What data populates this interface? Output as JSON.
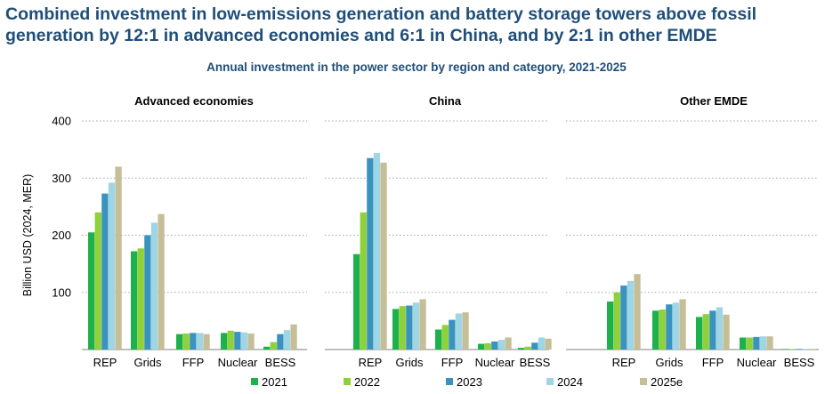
{
  "headline": "Combined investment in low-emissions generation and battery storage towers above fossil generation by 12:1 in advanced economies and 6:1 in China, and by 2:1 in other EMDE",
  "subtitle": "Annual investment in the power sector by region and category, 2021-2025",
  "colors": {
    "2021": "#1db14b",
    "2022": "#8ed13a",
    "2023": "#3a93bd",
    "2024": "#9fd6e6",
    "2025e": "#c5be97",
    "headline": "#1f4e79",
    "grid": "#a6a6a6"
  },
  "chart_data": {
    "type": "bar",
    "ylabel": "Billion USD (2024, MER)",
    "ylim": [
      0,
      400
    ],
    "yticks": [
      100,
      200,
      300,
      400
    ],
    "grid": true,
    "legend_position": "bottom",
    "categories": [
      "REP",
      "Grids",
      "FFP",
      "Nuclear",
      "BESS"
    ],
    "series_names": [
      "2021",
      "2022",
      "2023",
      "2024",
      "2025e"
    ],
    "panels": [
      {
        "title": "Advanced economies",
        "values": {
          "REP": [
            205,
            240,
            273,
            292,
            320
          ],
          "Grids": [
            172,
            177,
            200,
            222,
            237
          ],
          "FFP": [
            27,
            28,
            29,
            29,
            27
          ],
          "Nuclear": [
            29,
            33,
            31,
            30,
            28
          ],
          "BESS": [
            5,
            13,
            27,
            34,
            44
          ]
        }
      },
      {
        "title": "China",
        "values": {
          "REP": [
            167,
            240,
            335,
            344,
            327
          ],
          "Grids": [
            71,
            76,
            77,
            82,
            88
          ],
          "FFP": [
            35,
            43,
            52,
            63,
            65
          ],
          "Nuclear": [
            10,
            11,
            14,
            17,
            21
          ],
          "BESS": [
            3,
            5,
            12,
            21,
            19
          ]
        }
      },
      {
        "title": "Other EMDE",
        "values": {
          "REP": [
            84,
            100,
            112,
            120,
            132
          ],
          "Grids": [
            68,
            70,
            79,
            82,
            88
          ],
          "FFP": [
            57,
            62,
            68,
            74,
            61
          ],
          "Nuclear": [
            21,
            21,
            22,
            23,
            23
          ],
          "BESS": [
            0.5,
            0.5,
            0.8,
            1,
            1
          ]
        }
      }
    ]
  }
}
